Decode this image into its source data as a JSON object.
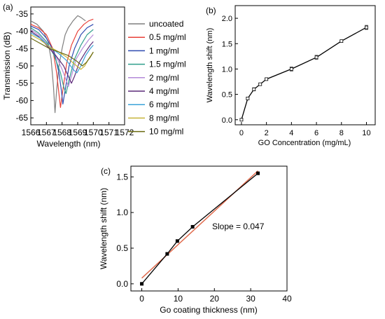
{
  "chart_data": [
    {
      "panel_label": "(a)",
      "type": "line",
      "xlabel": "Wavelength (nm)",
      "ylabel": "Transmission (dB)",
      "xlim": [
        1566,
        1572
      ],
      "ylim": [
        -67,
        -33
      ],
      "xticks": [
        1566,
        1567,
        1568,
        1569,
        1570,
        1571,
        1572
      ],
      "yticks": [
        -35,
        -40,
        -45,
        -50,
        -55,
        -60,
        -65
      ],
      "legend_position": "right",
      "series": [
        {
          "name": "uncoated",
          "color": "#7f7f7f",
          "x": [
            1566.0,
            1566.4,
            1566.8,
            1567.1,
            1567.3,
            1567.45,
            1567.55,
            1567.65,
            1567.8,
            1568.0,
            1568.2,
            1568.4,
            1568.7,
            1569.0,
            1569.2,
            1569.5
          ],
          "y": [
            -37,
            -38,
            -40,
            -43,
            -48,
            -56,
            -63.5,
            -57,
            -50,
            -45,
            -41,
            -39,
            -37,
            -35.5,
            -36,
            -37
          ]
        },
        {
          "name": "0.5 mg/ml",
          "color": "#e8413a",
          "x": [
            1566.0,
            1566.5,
            1567.0,
            1567.4,
            1567.65,
            1567.8,
            1567.9,
            1568.05,
            1568.3,
            1568.6,
            1569.0,
            1569.4,
            1569.7,
            1570.0
          ],
          "y": [
            -38,
            -39,
            -41,
            -45,
            -52,
            -58,
            -62,
            -57,
            -49,
            -44,
            -40,
            -38,
            -37,
            -36.5
          ]
        },
        {
          "name": "1 mg/ml",
          "color": "#2f4bb0",
          "x": [
            1566.0,
            1566.5,
            1567.0,
            1567.5,
            1567.8,
            1567.95,
            1568.05,
            1568.2,
            1568.45,
            1568.8,
            1569.2,
            1569.6,
            1570.0
          ],
          "y": [
            -38.5,
            -39.5,
            -42,
            -46,
            -52,
            -57,
            -61,
            -57,
            -50,
            -45,
            -41,
            -39,
            -38
          ]
        },
        {
          "name": "1.5 mg/ml",
          "color": "#2f9e8c",
          "x": [
            1566.0,
            1566.5,
            1567.0,
            1567.5,
            1567.9,
            1568.1,
            1568.25,
            1568.45,
            1568.8,
            1569.2,
            1569.6,
            1570.0
          ],
          "y": [
            -39,
            -40.5,
            -43,
            -47,
            -52,
            -56,
            -58,
            -54,
            -48,
            -44,
            -41,
            -39.5
          ]
        },
        {
          "name": "2 mg/ml",
          "color": "#b48ad8",
          "x": [
            1566.0,
            1566.5,
            1567.0,
            1567.6,
            1568.0,
            1568.25,
            1568.4,
            1568.6,
            1568.9,
            1569.3,
            1569.7,
            1570.0
          ],
          "y": [
            -39.5,
            -41,
            -43.5,
            -47,
            -51,
            -54,
            -56,
            -53,
            -48,
            -45,
            -42.5,
            -41
          ]
        },
        {
          "name": "4 mg/ml",
          "color": "#5c2a78",
          "x": [
            1566.0,
            1566.5,
            1567.0,
            1567.6,
            1568.1,
            1568.4,
            1568.6,
            1568.8,
            1569.1,
            1569.5,
            1569.8,
            1570.0
          ],
          "y": [
            -40,
            -41.5,
            -44,
            -47,
            -50,
            -53,
            -55,
            -53,
            -49,
            -46,
            -44,
            -43
          ]
        },
        {
          "name": "6 mg/ml",
          "color": "#3aa3d8",
          "x": [
            1566.0,
            1566.6,
            1567.2,
            1567.8,
            1568.3,
            1568.7,
            1568.95,
            1569.2,
            1569.5,
            1569.8,
            1570.0
          ],
          "y": [
            -40.5,
            -42,
            -44.5,
            -46.5,
            -48.5,
            -51,
            -52,
            -50,
            -47,
            -45,
            -44
          ]
        },
        {
          "name": "8 mg/ml",
          "color": "#c7b43a",
          "x": [
            1566.0,
            1566.6,
            1567.2,
            1567.8,
            1568.3,
            1568.8,
            1569.2,
            1569.45,
            1569.7,
            1570.0
          ],
          "y": [
            -41,
            -42.5,
            -44.5,
            -46,
            -47.5,
            -49.5,
            -51,
            -50,
            -48,
            -46
          ]
        },
        {
          "name": "10 mg/ml",
          "color": "#6a6a10",
          "x": [
            1566.0,
            1566.6,
            1567.2,
            1567.8,
            1568.4,
            1568.9,
            1569.3,
            1569.55,
            1569.8,
            1570.0
          ],
          "y": [
            -42,
            -43.5,
            -45,
            -46,
            -47,
            -48.5,
            -50,
            -49,
            -47.5,
            -46
          ]
        }
      ]
    },
    {
      "panel_label": "(b)",
      "type": "line",
      "xlabel": "GO Concentration (mg/mL)",
      "ylabel": "Wavelength shift (nm)",
      "xlim": [
        -0.5,
        10.7
      ],
      "ylim": [
        -0.1,
        2.25
      ],
      "xticks": [
        0,
        2,
        4,
        6,
        8,
        10
      ],
      "yticks": [
        0.0,
        0.5,
        1.0,
        1.5,
        2.0
      ],
      "ytick_labels": [
        "0.0",
        "0.5",
        "1.0",
        "1.5",
        "2.0"
      ],
      "series": [
        {
          "name": "",
          "x": [
            0,
            0.5,
            1,
            1.5,
            2,
            4,
            6,
            8,
            10
          ],
          "y": [
            0.0,
            0.42,
            0.6,
            0.7,
            0.8,
            1.0,
            1.23,
            1.55,
            1.82
          ],
          "error": [
            0.02,
            0.02,
            0.03,
            0.02,
            0.02,
            0.04,
            0.04,
            0.02,
            0.04
          ]
        }
      ]
    },
    {
      "panel_label": "(c)",
      "type": "scatter",
      "xlabel": "Go coating thickness (nm)",
      "ylabel": "Wavelength shift (nm)",
      "xlim": [
        -3,
        40
      ],
      "ylim": [
        -0.1,
        1.65
      ],
      "xticks": [
        0,
        10,
        20,
        30,
        40
      ],
      "yticks": [
        0.0,
        0.5,
        1.0,
        1.5
      ],
      "ytick_labels": [
        "0.0",
        "0.5",
        "1.0",
        "1.5"
      ],
      "annotation": "Slope = 0.047",
      "series": [
        {
          "name": "",
          "x": [
            0,
            7,
            9.8,
            14,
            32
          ],
          "y": [
            0.0,
            0.42,
            0.6,
            0.8,
            1.55
          ]
        }
      ],
      "fit": {
        "slope": 0.047,
        "intercept": 0.08,
        "x": [
          0,
          32
        ],
        "color": "#e06a4c"
      }
    }
  ]
}
